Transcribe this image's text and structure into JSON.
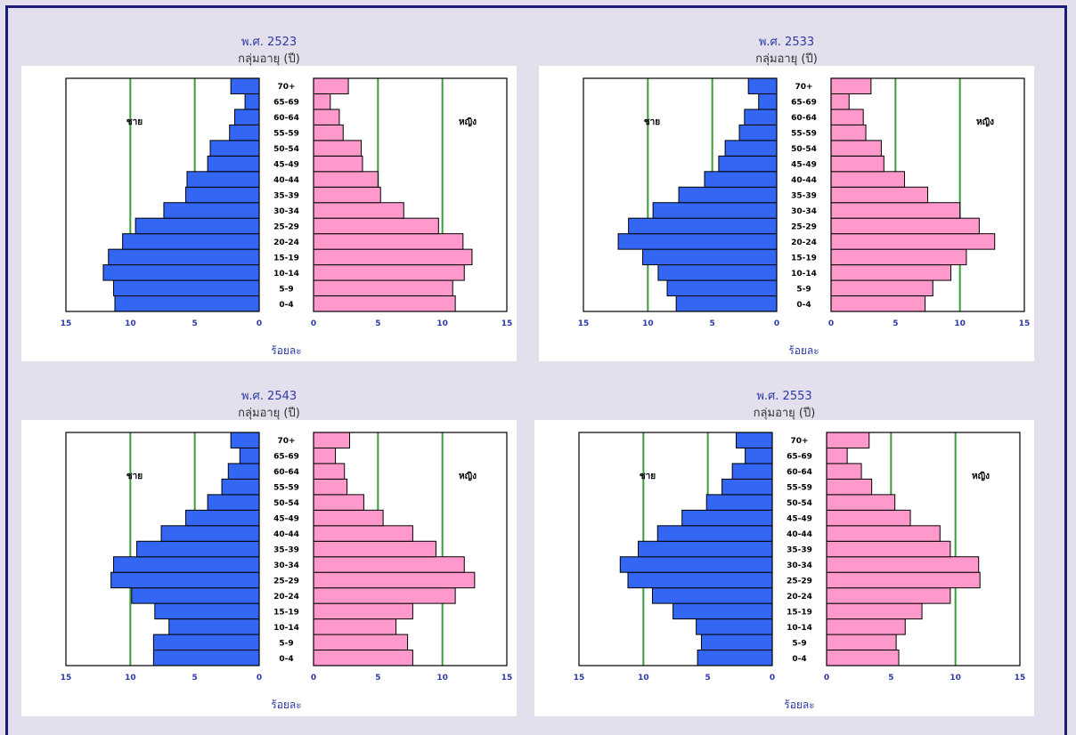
{
  "chart_data": [
    {
      "type": "bar",
      "title": "พ.ศ. 2523",
      "subtitle": "กลุ่มอายุ (ปี)",
      "xlabel": "ร้อยละ",
      "left_series": "ชาย",
      "right_series": "หญิง",
      "categories": [
        "0-4",
        "5-9",
        "10-14",
        "15-19",
        "20-24",
        "25-29",
        "30-34",
        "35-39",
        "40-44",
        "45-49",
        "50-54",
        "55-59",
        "60-64",
        "65-69",
        "70+"
      ],
      "series": [
        {
          "name": "ชาย",
          "values": [
            11.2,
            11.3,
            12.1,
            11.7,
            10.6,
            9.6,
            7.4,
            5.7,
            5.6,
            4.0,
            3.8,
            2.3,
            1.9,
            1.1,
            2.2
          ]
        },
        {
          "name": "หญิง",
          "values": [
            11.0,
            10.8,
            11.7,
            12.3,
            11.6,
            9.7,
            7.0,
            5.2,
            5.0,
            3.8,
            3.7,
            2.3,
            2.0,
            1.3,
            2.7
          ]
        }
      ],
      "xlim": [
        0,
        15
      ],
      "ticks": [
        "15",
        "10",
        "5",
        "0",
        "0",
        "5",
        "10",
        "15"
      ]
    },
    {
      "type": "bar",
      "title": "พ.ศ. 2533",
      "subtitle": "กลุ่มอายุ (ปี)",
      "xlabel": "ร้อยละ",
      "left_series": "ชาย",
      "right_series": "หญิง",
      "categories": [
        "0-4",
        "5-9",
        "10-14",
        "15-19",
        "20-24",
        "25-29",
        "30-34",
        "35-39",
        "40-44",
        "45-49",
        "50-54",
        "55-59",
        "60-64",
        "65-69",
        "70+"
      ],
      "series": [
        {
          "name": "ชาย",
          "values": [
            7.8,
            8.5,
            9.2,
            10.4,
            12.3,
            11.5,
            9.6,
            7.6,
            5.6,
            4.5,
            4.0,
            2.9,
            2.5,
            1.4,
            2.2
          ]
        },
        {
          "name": "หญิง",
          "values": [
            7.3,
            7.9,
            9.3,
            10.5,
            12.7,
            11.5,
            10.0,
            7.5,
            5.7,
            4.1,
            3.9,
            2.7,
            2.5,
            1.4,
            3.1
          ]
        }
      ],
      "xlim": [
        0,
        15
      ],
      "ticks": [
        "15",
        "10",
        "5",
        "0",
        "0",
        "5",
        "10",
        "15"
      ]
    },
    {
      "type": "bar",
      "title": "พ.ศ. 2543",
      "subtitle": "กลุ่มอายุ (ปี)",
      "xlabel": "ร้อยละ",
      "left_series": "ชาย",
      "right_series": "หญิง",
      "categories": [
        "0-4",
        "5-9",
        "10-14",
        "15-19",
        "20-24",
        "25-29",
        "30-34",
        "35-39",
        "40-44",
        "45-49",
        "50-54",
        "55-59",
        "60-64",
        "65-69",
        "70+"
      ],
      "series": [
        {
          "name": "ชาย",
          "values": [
            8.2,
            8.2,
            7.0,
            8.1,
            9.9,
            11.5,
            11.3,
            9.5,
            7.6,
            5.7,
            4.0,
            2.9,
            2.4,
            1.5,
            2.2
          ]
        },
        {
          "name": "หญิง",
          "values": [
            7.7,
            7.3,
            6.4,
            7.7,
            11.0,
            12.5,
            11.7,
            9.5,
            7.7,
            5.4,
            3.9,
            2.6,
            2.4,
            1.7,
            2.8
          ]
        }
      ],
      "xlim": [
        0,
        15
      ],
      "ticks": [
        "15",
        "10",
        "5",
        "0",
        "0",
        "5",
        "10",
        "15"
      ]
    },
    {
      "type": "bar",
      "title": "พ.ศ. 2553",
      "subtitle": "กลุ่มอายุ (ปี)",
      "xlabel": "ร้อยละ",
      "left_series": "ชาย",
      "right_series": "หญิง",
      "categories": [
        "0-4",
        "5-9",
        "10-14",
        "15-19",
        "20-24",
        "25-29",
        "30-34",
        "35-39",
        "40-44",
        "45-49",
        "50-54",
        "55-59",
        "60-64",
        "65-69",
        "70+"
      ],
      "series": [
        {
          "name": "ชาย",
          "values": [
            5.8,
            5.5,
            5.9,
            7.7,
            9.3,
            11.2,
            11.8,
            10.4,
            8.9,
            7.0,
            5.1,
            3.9,
            3.1,
            2.1,
            2.8
          ]
        },
        {
          "name": "หญิง",
          "values": [
            5.6,
            5.4,
            6.1,
            7.4,
            9.6,
            11.9,
            11.8,
            9.6,
            8.8,
            6.5,
            5.3,
            3.5,
            2.7,
            1.6,
            3.3
          ]
        }
      ],
      "xlim": [
        0,
        15
      ],
      "ticks": [
        "15",
        "10",
        "5",
        "0",
        "0",
        "5",
        "10",
        "15"
      ]
    }
  ],
  "colors": {
    "male": "#3366f2",
    "female": "#ff99cc",
    "grid": "#3c9c3c",
    "title": "#2b3aa8",
    "background": "#e4dfec",
    "frame": "#1c1c7a"
  }
}
